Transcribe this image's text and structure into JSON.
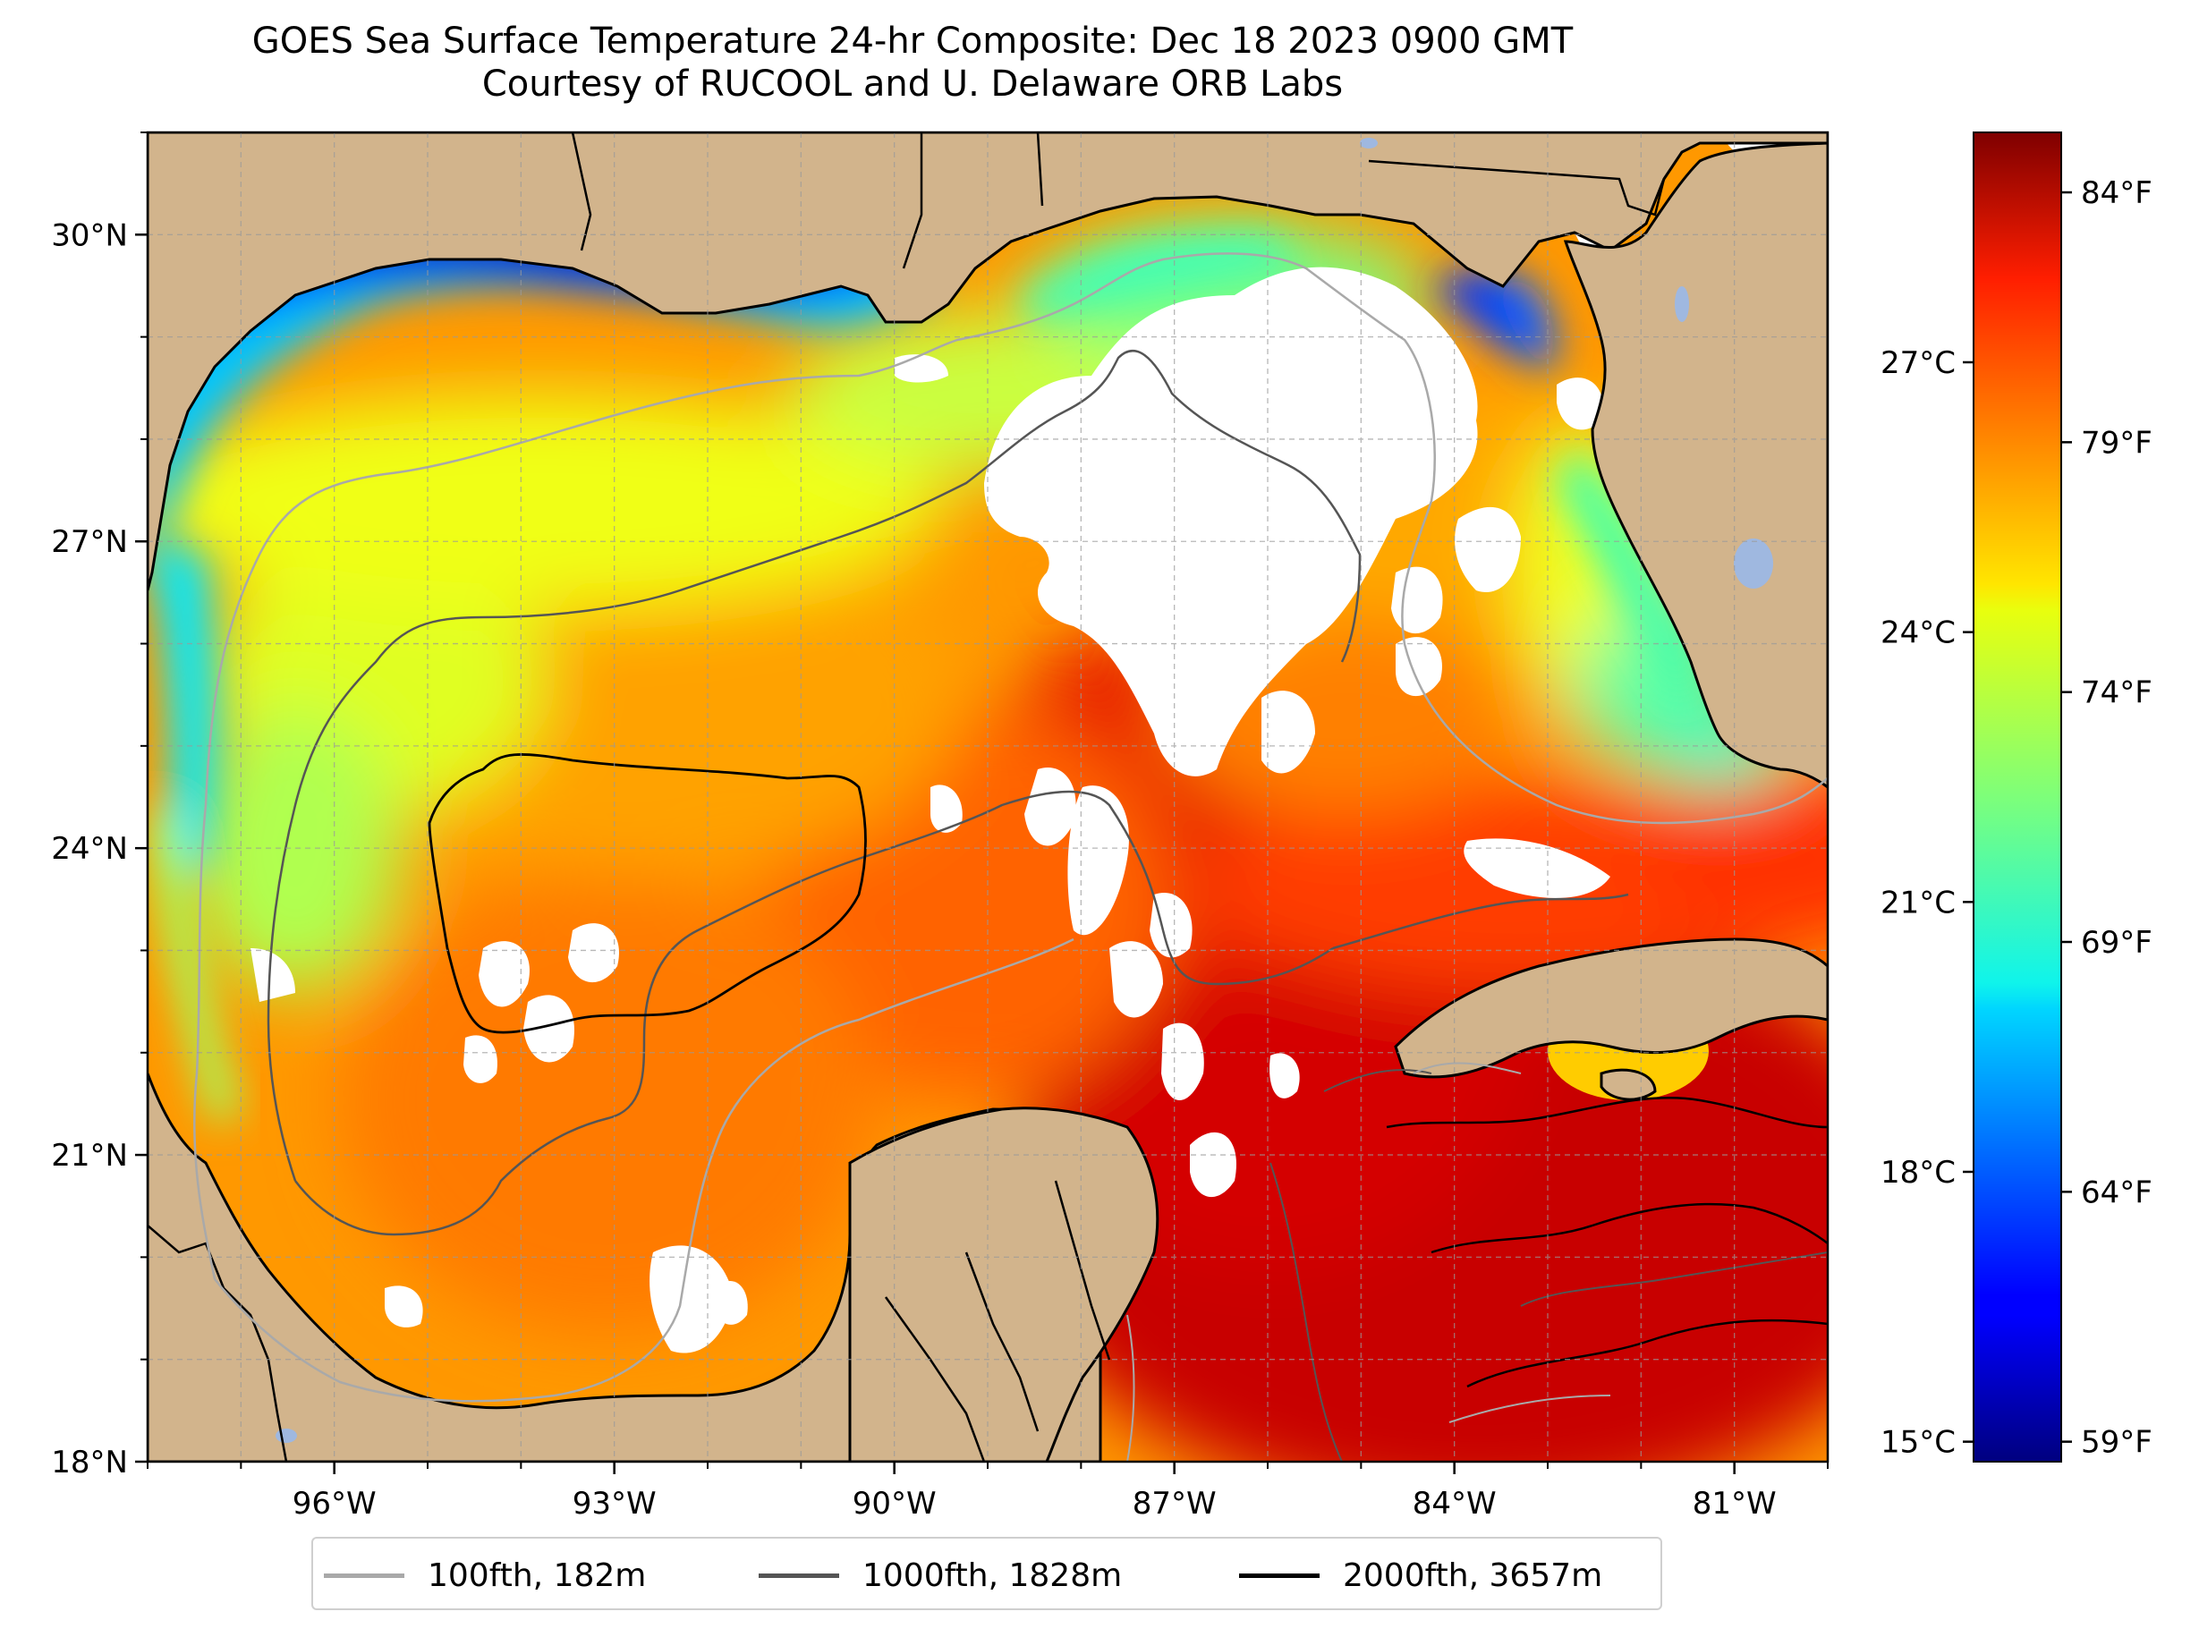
{
  "title": {
    "line1": "GOES Sea Surface Temperature 24-hr Composite: Dec 18 2023 0900 GMT",
    "line2": "Courtesy of RUCOOL and U. Delaware ORB Labs"
  },
  "map": {
    "lon_range": [
      -98,
      -80
    ],
    "lat_range": [
      18,
      31
    ],
    "lon_ticks": [
      -96,
      -93,
      -90,
      -87,
      -84,
      -81
    ],
    "lon_tick_labels": [
      "96°W",
      "93°W",
      "90°W",
      "87°W",
      "84°W",
      "81°W"
    ],
    "lat_ticks": [
      18,
      21,
      24,
      27,
      30
    ],
    "lat_tick_labels": [
      "18°N",
      "21°N",
      "24°N",
      "27°N",
      "30°N"
    ],
    "gridlines": "dashed",
    "land_color": "#d2b48c",
    "cloud_mask_color": "#ffffff"
  },
  "colorbar": {
    "colormap": "jet",
    "celsius_labels": [
      "15°C",
      "18°C",
      "21°C",
      "24°C",
      "27°C"
    ],
    "fahrenheit_labels": [
      "59°F",
      "64°F",
      "69°F",
      "74°F",
      "79°F",
      "84°F"
    ]
  },
  "legend": {
    "items": [
      {
        "label": "100fth, 182m",
        "color": "#a9a9a9"
      },
      {
        "label": "1000fth, 1828m",
        "color": "#555555"
      },
      {
        "label": "2000fth, 3657m",
        "color": "#000000"
      }
    ]
  }
}
